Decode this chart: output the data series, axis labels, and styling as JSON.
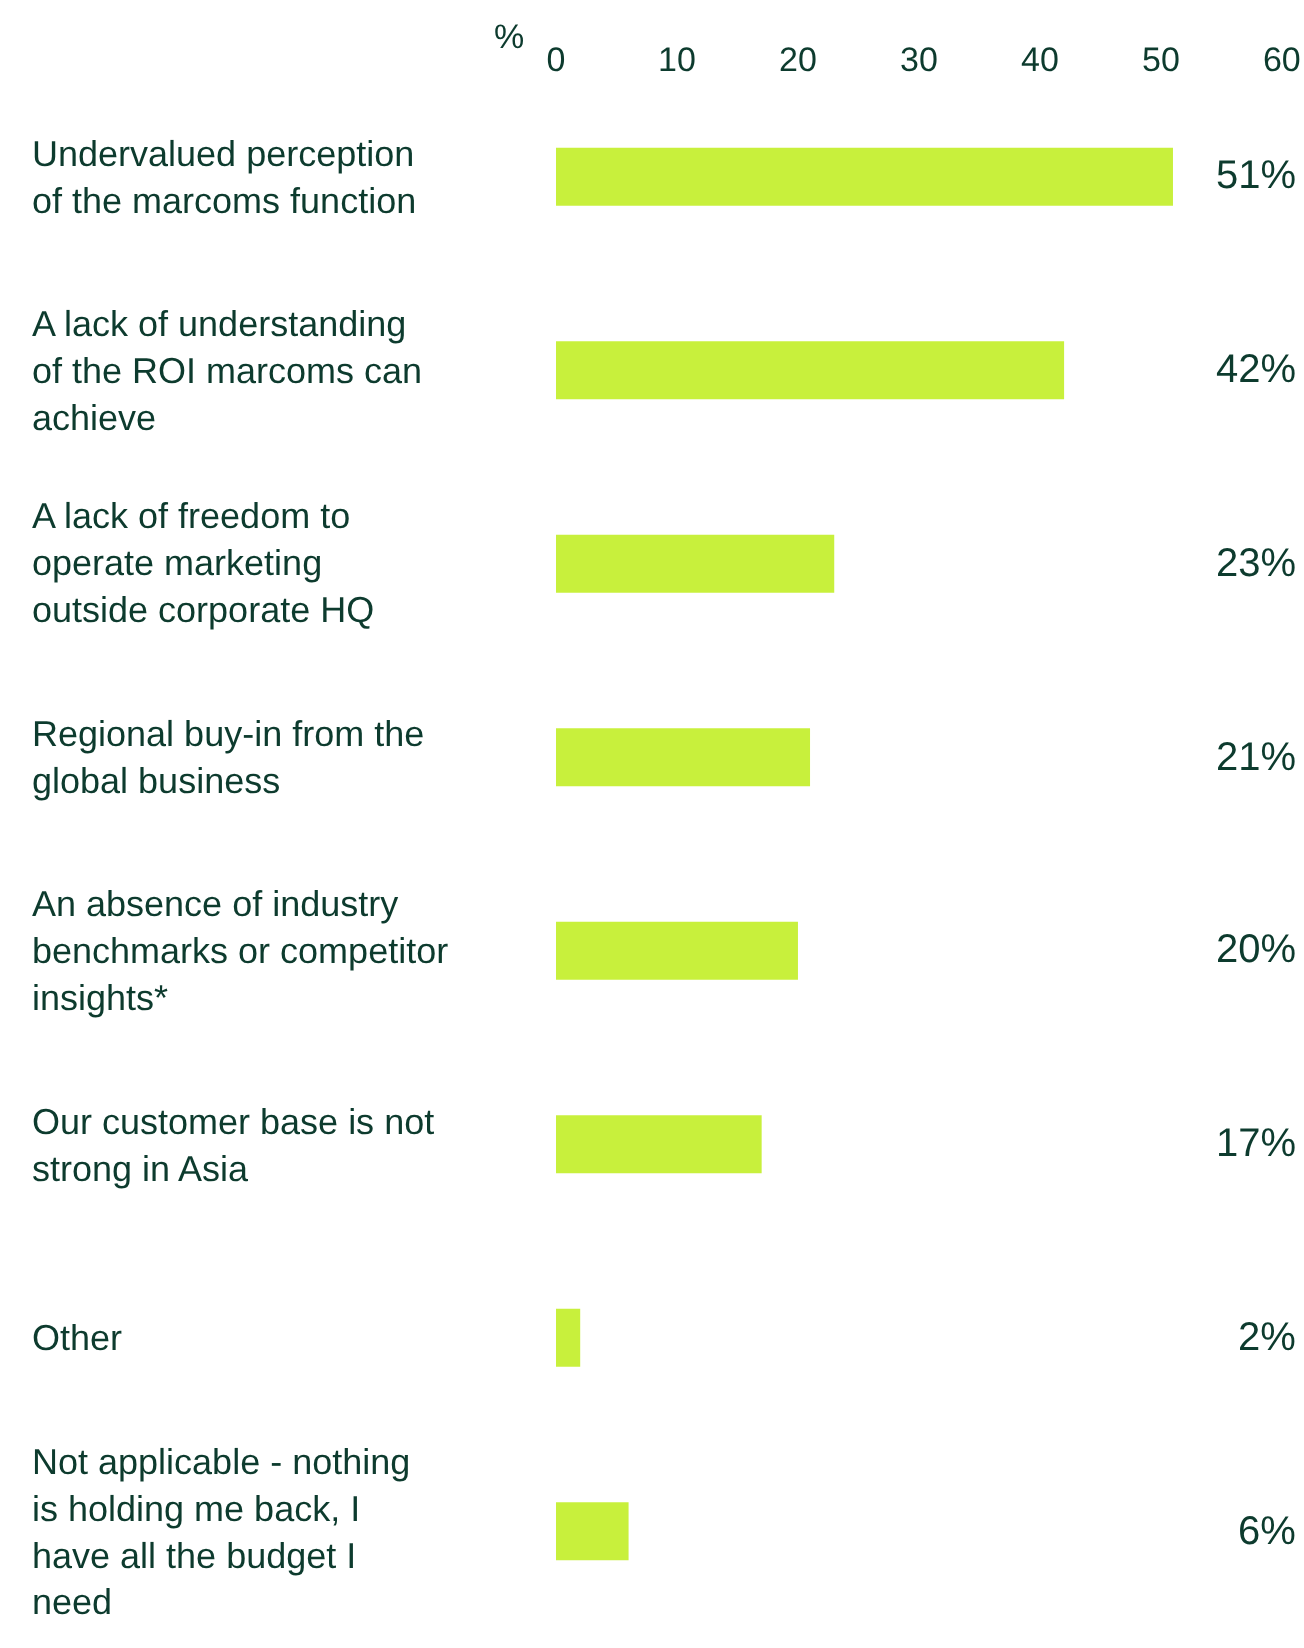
{
  "chart_data": {
    "type": "bar",
    "orientation": "horizontal",
    "xlabel": "%",
    "categories": [
      "Undervalued perception of the marcoms function",
      "A lack of understanding of the ROI marcoms can achieve",
      "A lack of freedom to operate marketing outside corporate HQ",
      "Regional buy-in from the global business",
      "An absence of industry benchmarks or competitor insights*",
      "Our customer base is not strong in Asia",
      "Other",
      "Not applicable - nothing is holding me back, I have all the budget I need"
    ],
    "values": [
      51,
      42,
      23,
      21,
      20,
      17,
      2,
      6
    ],
    "color": "#c8f03c",
    "value_labels": [
      "51%",
      "42%",
      "23%",
      "21%",
      "20%",
      "17%",
      "2%",
      "6%"
    ],
    "xlim": [
      0,
      61.5
    ],
    "xticks": [
      0,
      10,
      20,
      30,
      40,
      50,
      60
    ],
    "grid": false,
    "legend": false
  }
}
